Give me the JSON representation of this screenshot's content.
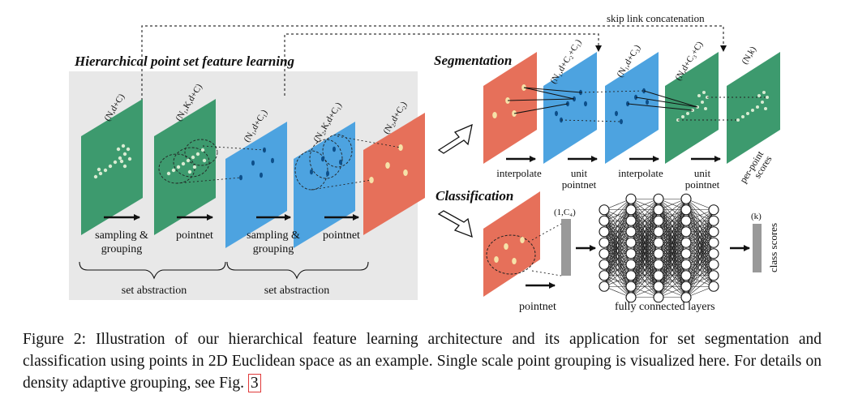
{
  "figure": {
    "panel_title": "Hierarchical point set feature learning",
    "segmentation_title": "Segmentation",
    "classification_title": "Classification",
    "skip_label": "skip link concatenation",
    "h_labels": [
      "(N,d+C)",
      "(N₁,K,d+C)",
      "(N₁,d+C₁)",
      "(N₂,K,d+C₁)",
      "(N₂,d+C₂)"
    ],
    "h_steps": [
      [
        "sampling &",
        "grouping"
      ],
      [
        "pointnet"
      ],
      [
        "sampling &",
        "grouping"
      ],
      [
        "pointnet"
      ]
    ],
    "brace_labels": [
      "set abstraction",
      "set abstraction"
    ],
    "s_labels": [
      "(N₁,d+C₂+C₁)",
      "(N₁,d+C₃)",
      "(N,d+C₃+C)",
      "(N,k)"
    ],
    "s_steps": [
      [
        "interpolate"
      ],
      [
        "unit",
        "pointnet"
      ],
      [
        "interpolate"
      ],
      [
        "unit",
        "pointnet"
      ]
    ],
    "s_scores": [
      "per-point",
      "scores"
    ],
    "c_vec_label": "(1,C₄)",
    "c_k_label": "(k)",
    "c_class_scores": "class scores",
    "c_pointnet": "pointnet",
    "c_fc": "fully connected layers",
    "colors": {
      "green": "#3d9a6e",
      "blue": "#4da3e0",
      "red": "#e6705a",
      "panel": "#e8e8e8"
    }
  },
  "caption": {
    "prefix": "Figure 2: Illustration of our hierarchical feature learning architecture and its application for set segmentation and classification using points in 2D Euclidean space as an example. Single scale point grouping is visualized here. For details on density adaptive grouping, see Fig.",
    "ref": "3"
  }
}
